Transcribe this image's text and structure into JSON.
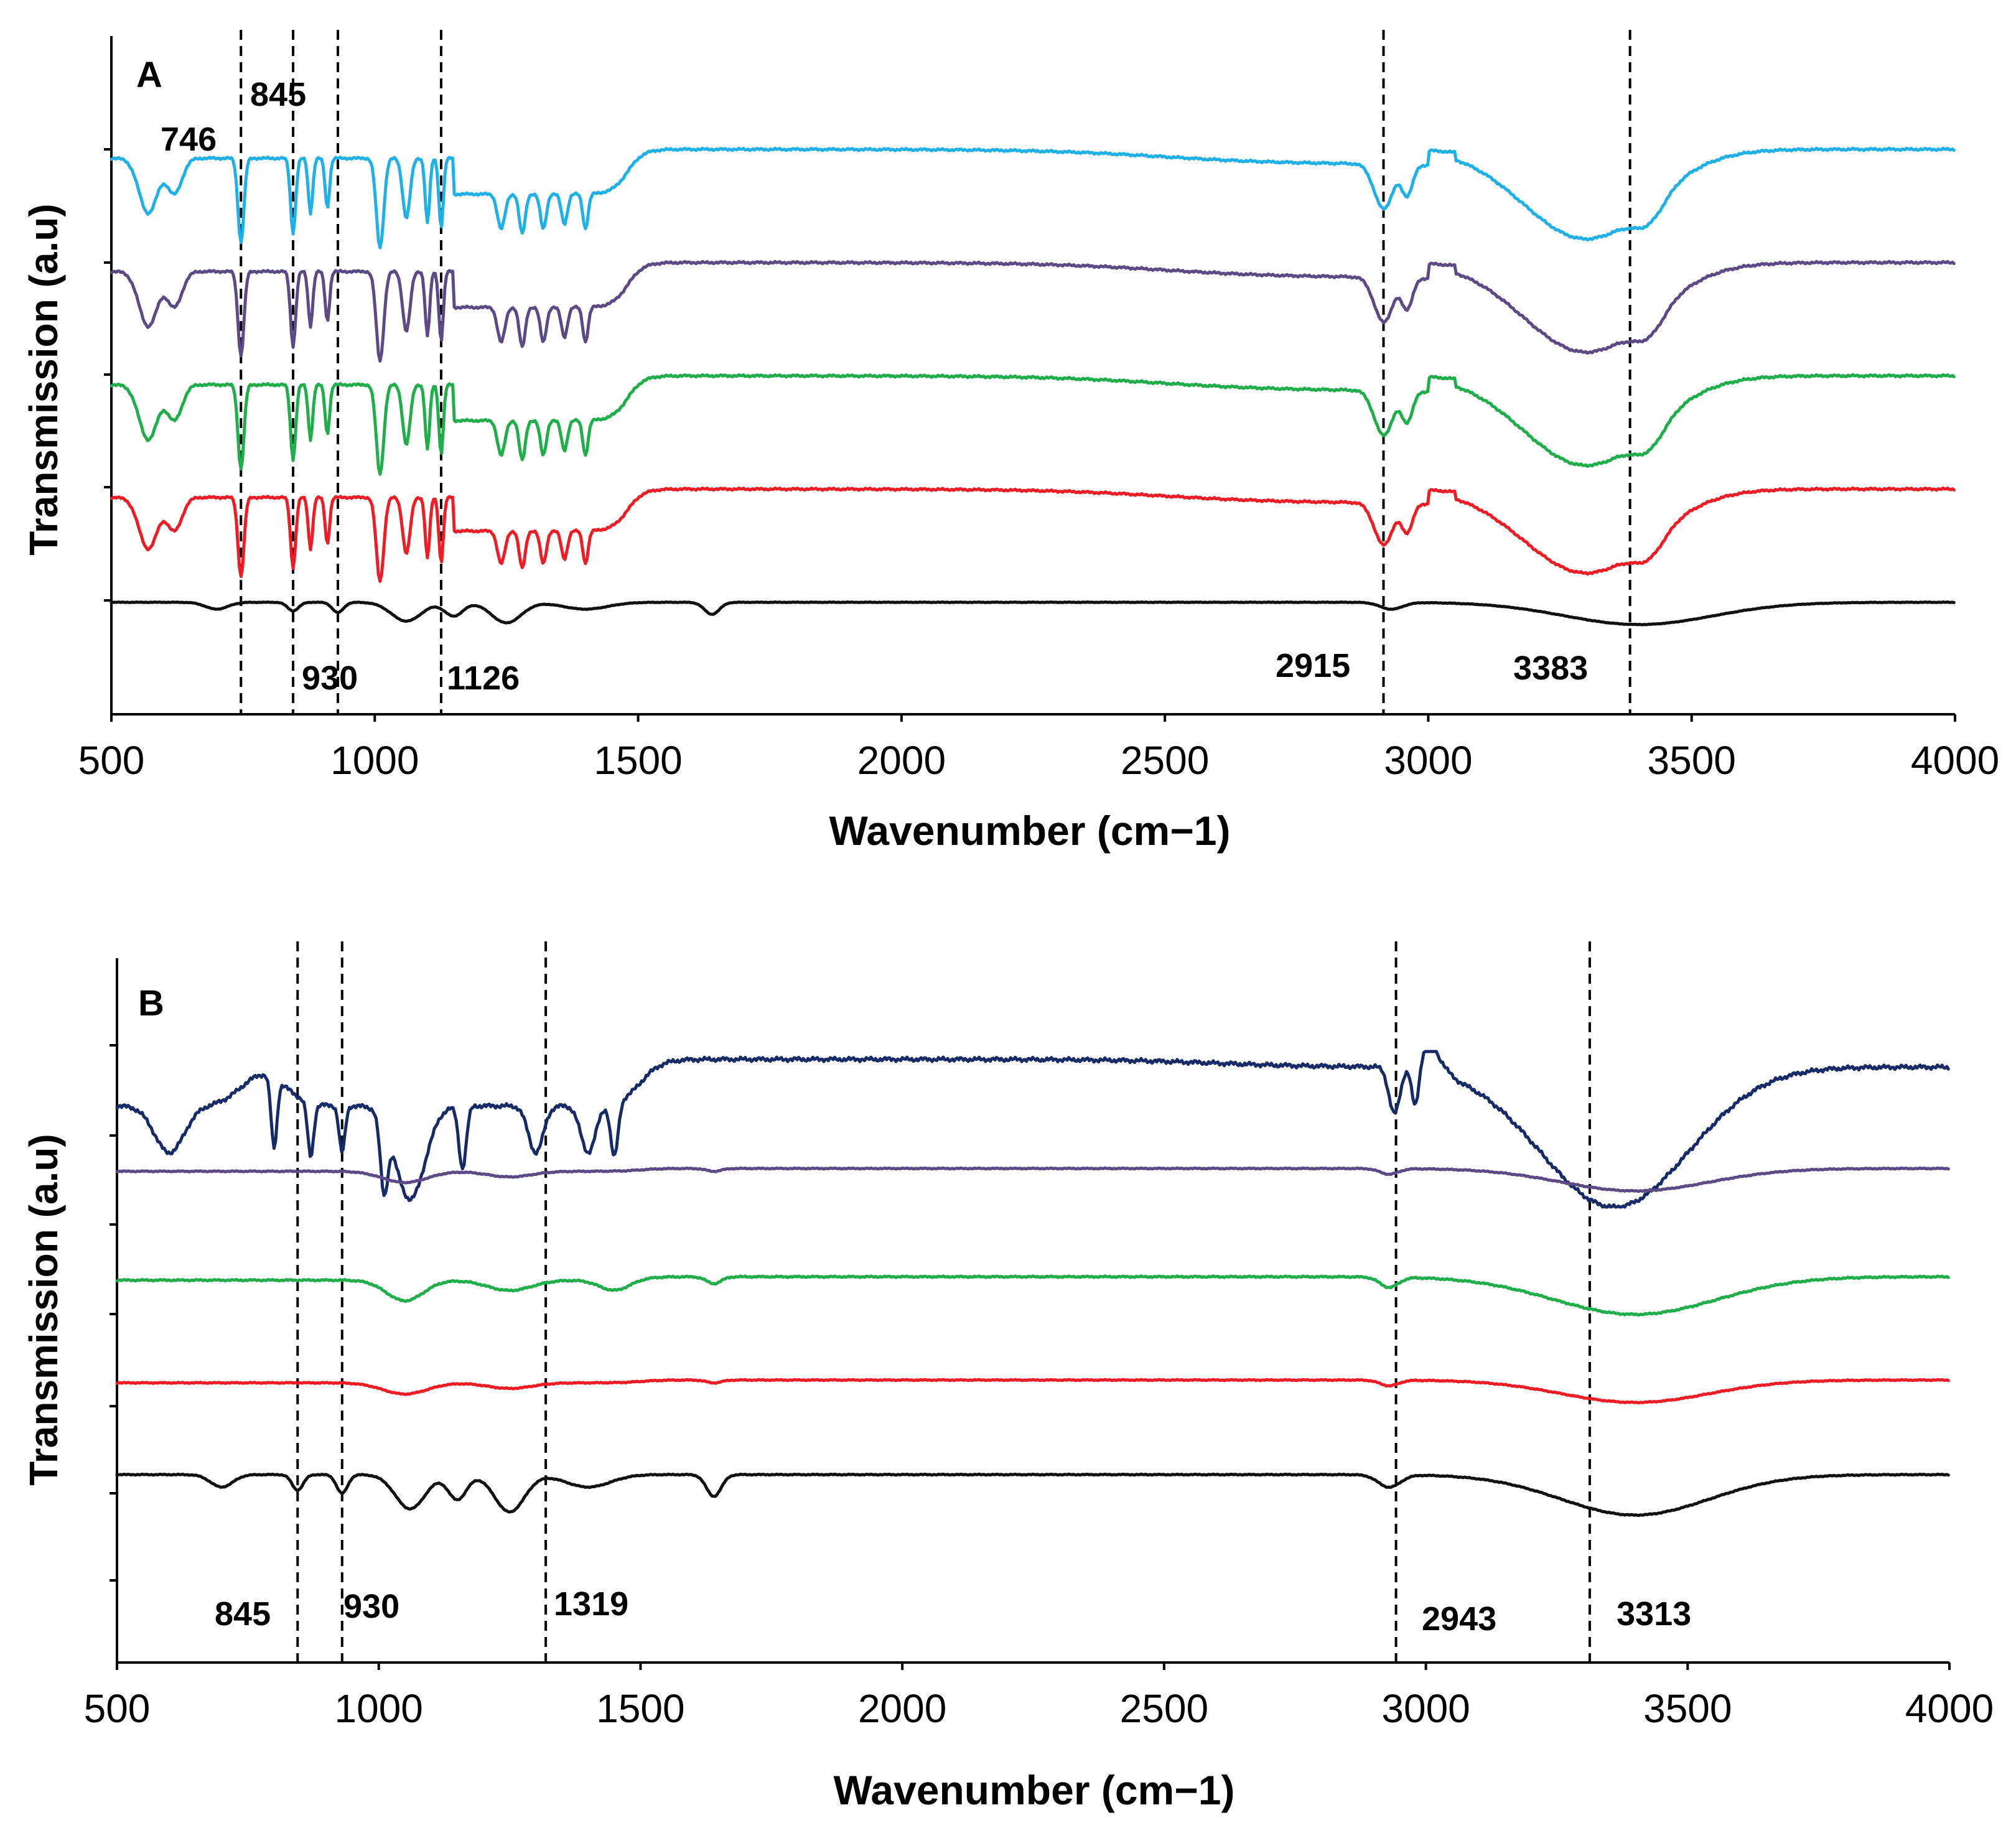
{
  "chart_data": [
    {
      "type": "line",
      "panel": "A",
      "title": "",
      "xlabel": "Wavenumber (cm−1)",
      "ylabel": "Transmission (a.u)",
      "xlim": [
        500,
        4000
      ],
      "xticks": [
        500,
        1000,
        1500,
        2000,
        2500,
        3000,
        3500,
        4000
      ],
      "marked_peaks": [
        746,
        845,
        930,
        1126,
        2915,
        3383
      ],
      "peak_labels": [
        "746",
        "845",
        "930",
        "1126",
        "2915",
        "3383"
      ],
      "series": [
        {
          "name": "trace-1",
          "color": "#1fb0e8",
          "offset": 4,
          "shape": "spectrumA1"
        },
        {
          "name": "trace-2",
          "color": "#5c4a87",
          "offset": 3,
          "shape": "spectrumA1"
        },
        {
          "name": "trace-3",
          "color": "#1fae4a",
          "offset": 2,
          "shape": "spectrumA1"
        },
        {
          "name": "trace-4",
          "color": "#ee1c24",
          "offset": 1,
          "shape": "spectrumA1"
        },
        {
          "name": "trace-5",
          "color": "#111111",
          "offset": 0,
          "shape": "spectrumBase"
        }
      ]
    },
    {
      "type": "line",
      "panel": "B",
      "title": "",
      "xlabel": "Wavenumber (cm−1)",
      "ylabel": "Transmission (a.u)",
      "xlim": [
        500,
        4000
      ],
      "xticks": [
        500,
        1000,
        1500,
        2000,
        2500,
        3000,
        3500,
        4000
      ],
      "marked_peaks": [
        845,
        930,
        1319,
        2943,
        3313
      ],
      "peak_labels": [
        "845",
        "930",
        "1319",
        "2943",
        "3313"
      ],
      "series": [
        {
          "name": "trace-1",
          "color": "#152a66",
          "offset": 4,
          "shape": "spectrumB1"
        },
        {
          "name": "trace-2",
          "color": "#5c4a87",
          "offset": 3,
          "shape": "spectrumBflat"
        },
        {
          "name": "trace-3",
          "color": "#1fae4a",
          "offset": 2,
          "shape": "spectrumBmid"
        },
        {
          "name": "trace-4",
          "color": "#ee1c24",
          "offset": 1,
          "shape": "spectrumBflat"
        },
        {
          "name": "trace-5",
          "color": "#111111",
          "offset": 0,
          "shape": "spectrumBase"
        }
      ]
    }
  ],
  "panels": {
    "a": {
      "letter": "A",
      "ylabel": "Transmission (a.u)",
      "xlabel": "Wavenumber (cm−1)"
    },
    "b": {
      "letter": "B",
      "ylabel": "Transmission (a.u)",
      "xlabel": "Wavenumber (cm−1)"
    }
  }
}
